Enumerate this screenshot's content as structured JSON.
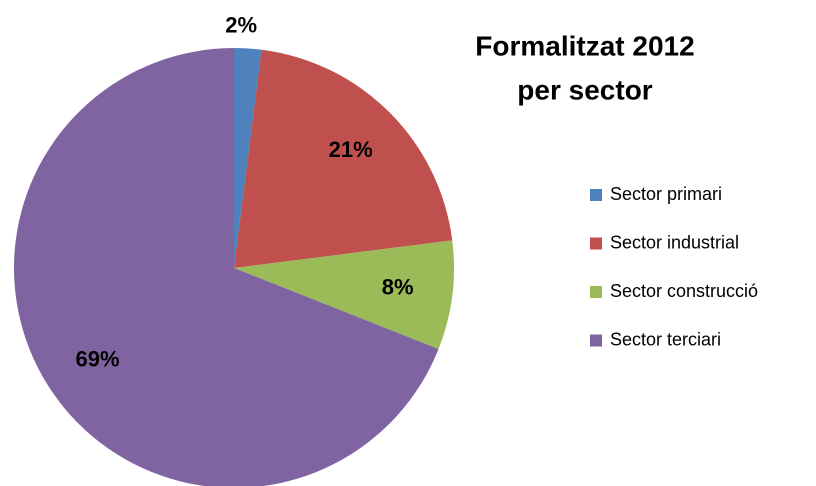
{
  "chart_data": {
    "type": "pie",
    "title": [
      "Formalitzat 2012",
      "per sector"
    ],
    "categories": [
      "Sector primari",
      "Sector industrial",
      "Sector construcció",
      "Sector terciari"
    ],
    "values": [
      2,
      21,
      8,
      69
    ],
    "value_labels": [
      "2%",
      "21%",
      "8%",
      "69%"
    ],
    "colors": [
      "#4f81bd",
      "#c0504d",
      "#9bbb59",
      "#8064a2"
    ],
    "legend": "right"
  }
}
